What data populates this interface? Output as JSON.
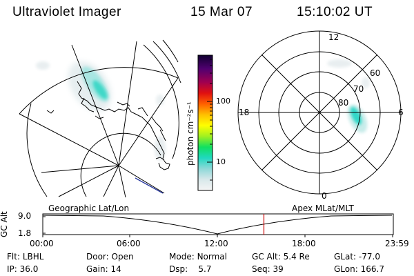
{
  "header": {
    "title": "Ultraviolet Imager",
    "date": "15 Mar 07",
    "time": "15:10:02 UT"
  },
  "left_panel": {
    "label": "Geographic Lat/Lon"
  },
  "right_panel": {
    "label": "Apex MLat/MLT",
    "mlt_labels": {
      "top": "12",
      "left": "18",
      "right": "6",
      "bottom": "0"
    },
    "lat_labels": [
      "60",
      "70",
      "80"
    ]
  },
  "colorbar": {
    "unit_label": "photon cm⁻²s⁻¹",
    "ticks": [
      "100",
      "10"
    ]
  },
  "timeline": {
    "ylabel": "GC Alt",
    "y_ticks": [
      "9.0",
      "1.8"
    ],
    "x_ticks": [
      "00:00",
      "06:00",
      "12:00",
      "18:00",
      "23:59"
    ],
    "current_marker_hours": 15.17,
    "marker_color": "#cc0000"
  },
  "info": {
    "row1": [
      {
        "label": "Flt:",
        "value": "LBHL"
      },
      {
        "label": "Door:",
        "value": "Open"
      },
      {
        "label": "Mode:",
        "value": "Normal"
      },
      {
        "label": "GC Alt:",
        "value": "5.4 Re"
      },
      {
        "label": "GLat:",
        "value": "-77.0"
      }
    ],
    "row2": [
      {
        "label": "IP:",
        "value": "36.0"
      },
      {
        "label": "Gain:",
        "value": "14"
      },
      {
        "label": "Dsp:",
        "value": "5.7"
      },
      {
        "label": "Seq:",
        "value": "39"
      },
      {
        "label": "GLon:",
        "value": "166.7"
      }
    ]
  }
}
